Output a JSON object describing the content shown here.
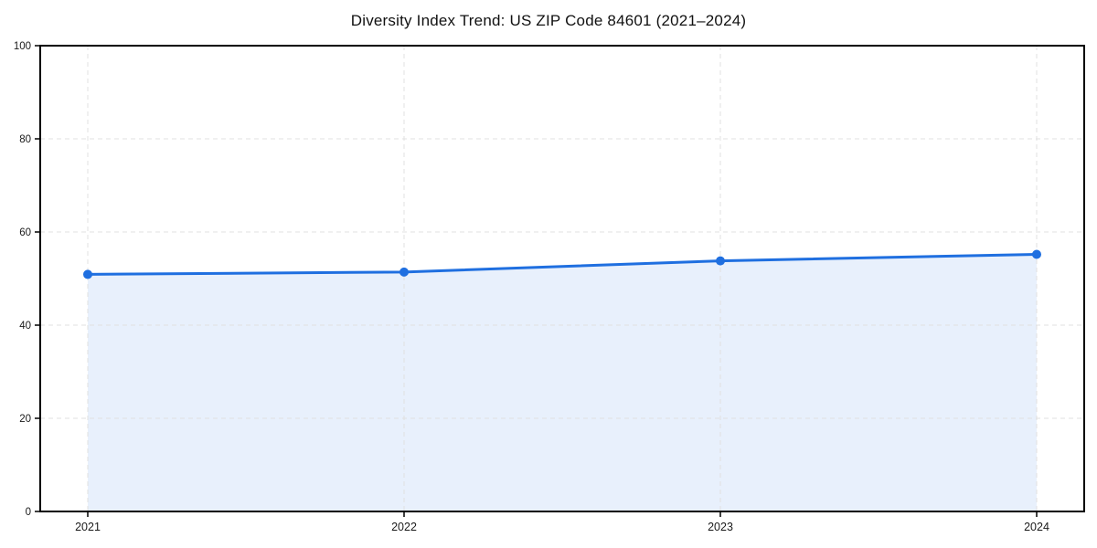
{
  "chart_data": {
    "type": "area",
    "title": "Diversity Index Trend: US ZIP Code 84601 (2021–2024)",
    "categories": [
      "2021",
      "2022",
      "2023",
      "2024"
    ],
    "values": [
      50.9,
      51.4,
      53.8,
      55.2
    ],
    "xlabel": "",
    "ylabel": "",
    "ylim": [
      0,
      100
    ],
    "yticks": [
      0,
      20,
      40,
      60,
      80,
      100
    ],
    "grid": true,
    "grid_style": "dashed",
    "legend": "none",
    "colors": {
      "line": "#1f6fe0",
      "marker": "#1f6fe0",
      "fill": "#1f6fe0",
      "fill_opacity": 0.1,
      "grid": "#e0e0e0",
      "spine": "#000000",
      "tick_text": "#1a1a1a",
      "background": "#ffffff"
    }
  }
}
